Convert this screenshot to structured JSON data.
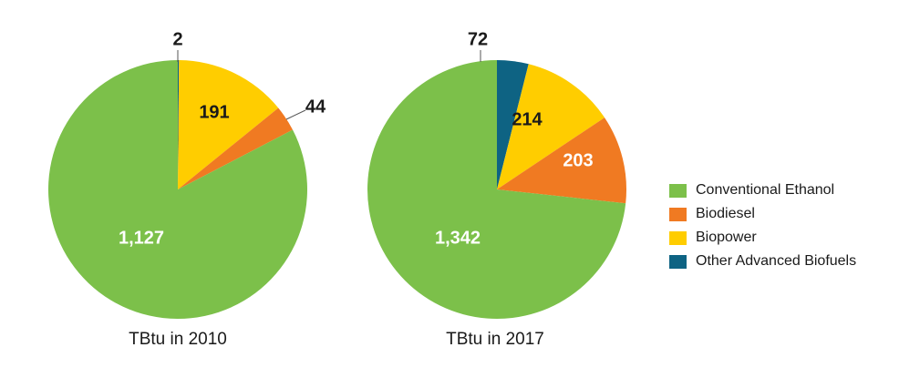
{
  "chart_data": [
    {
      "type": "pie",
      "caption": "TBtu in 2010",
      "slices": [
        {
          "label": "Other Advanced Biofuels",
          "value": 2,
          "value_label": "2",
          "color": "#0e6383"
        },
        {
          "label": "Biopower",
          "value": 191,
          "value_label": "191",
          "color": "#ffcd00"
        },
        {
          "label": "Biodiesel",
          "value": 44,
          "value_label": "44",
          "color": "#f07a22"
        },
        {
          "label": "Conventional Ethanol",
          "value": 1127,
          "value_label": "1,127",
          "color": "#7cc04a"
        }
      ]
    },
    {
      "type": "pie",
      "caption": "TBtu in 2017",
      "slices": [
        {
          "label": "Other Advanced Biofuels",
          "value": 72,
          "value_label": "72",
          "color": "#0e6383"
        },
        {
          "label": "Biopower",
          "value": 214,
          "value_label": "214",
          "color": "#ffcd00"
        },
        {
          "label": "Biodiesel",
          "value": 203,
          "value_label": "203",
          "color": "#f07a22"
        },
        {
          "label": "Conventional Ethanol",
          "value": 1342,
          "value_label": "1,342",
          "color": "#7cc04a"
        }
      ]
    }
  ],
  "legend": [
    {
      "label": "Conventional Ethanol",
      "color": "#7cc04a"
    },
    {
      "label": "Biodiesel",
      "color": "#f07a22"
    },
    {
      "label": "Biopower",
      "color": "#ffcd00"
    },
    {
      "label": "Other Advanced Biofuels",
      "color": "#0e6383"
    }
  ]
}
